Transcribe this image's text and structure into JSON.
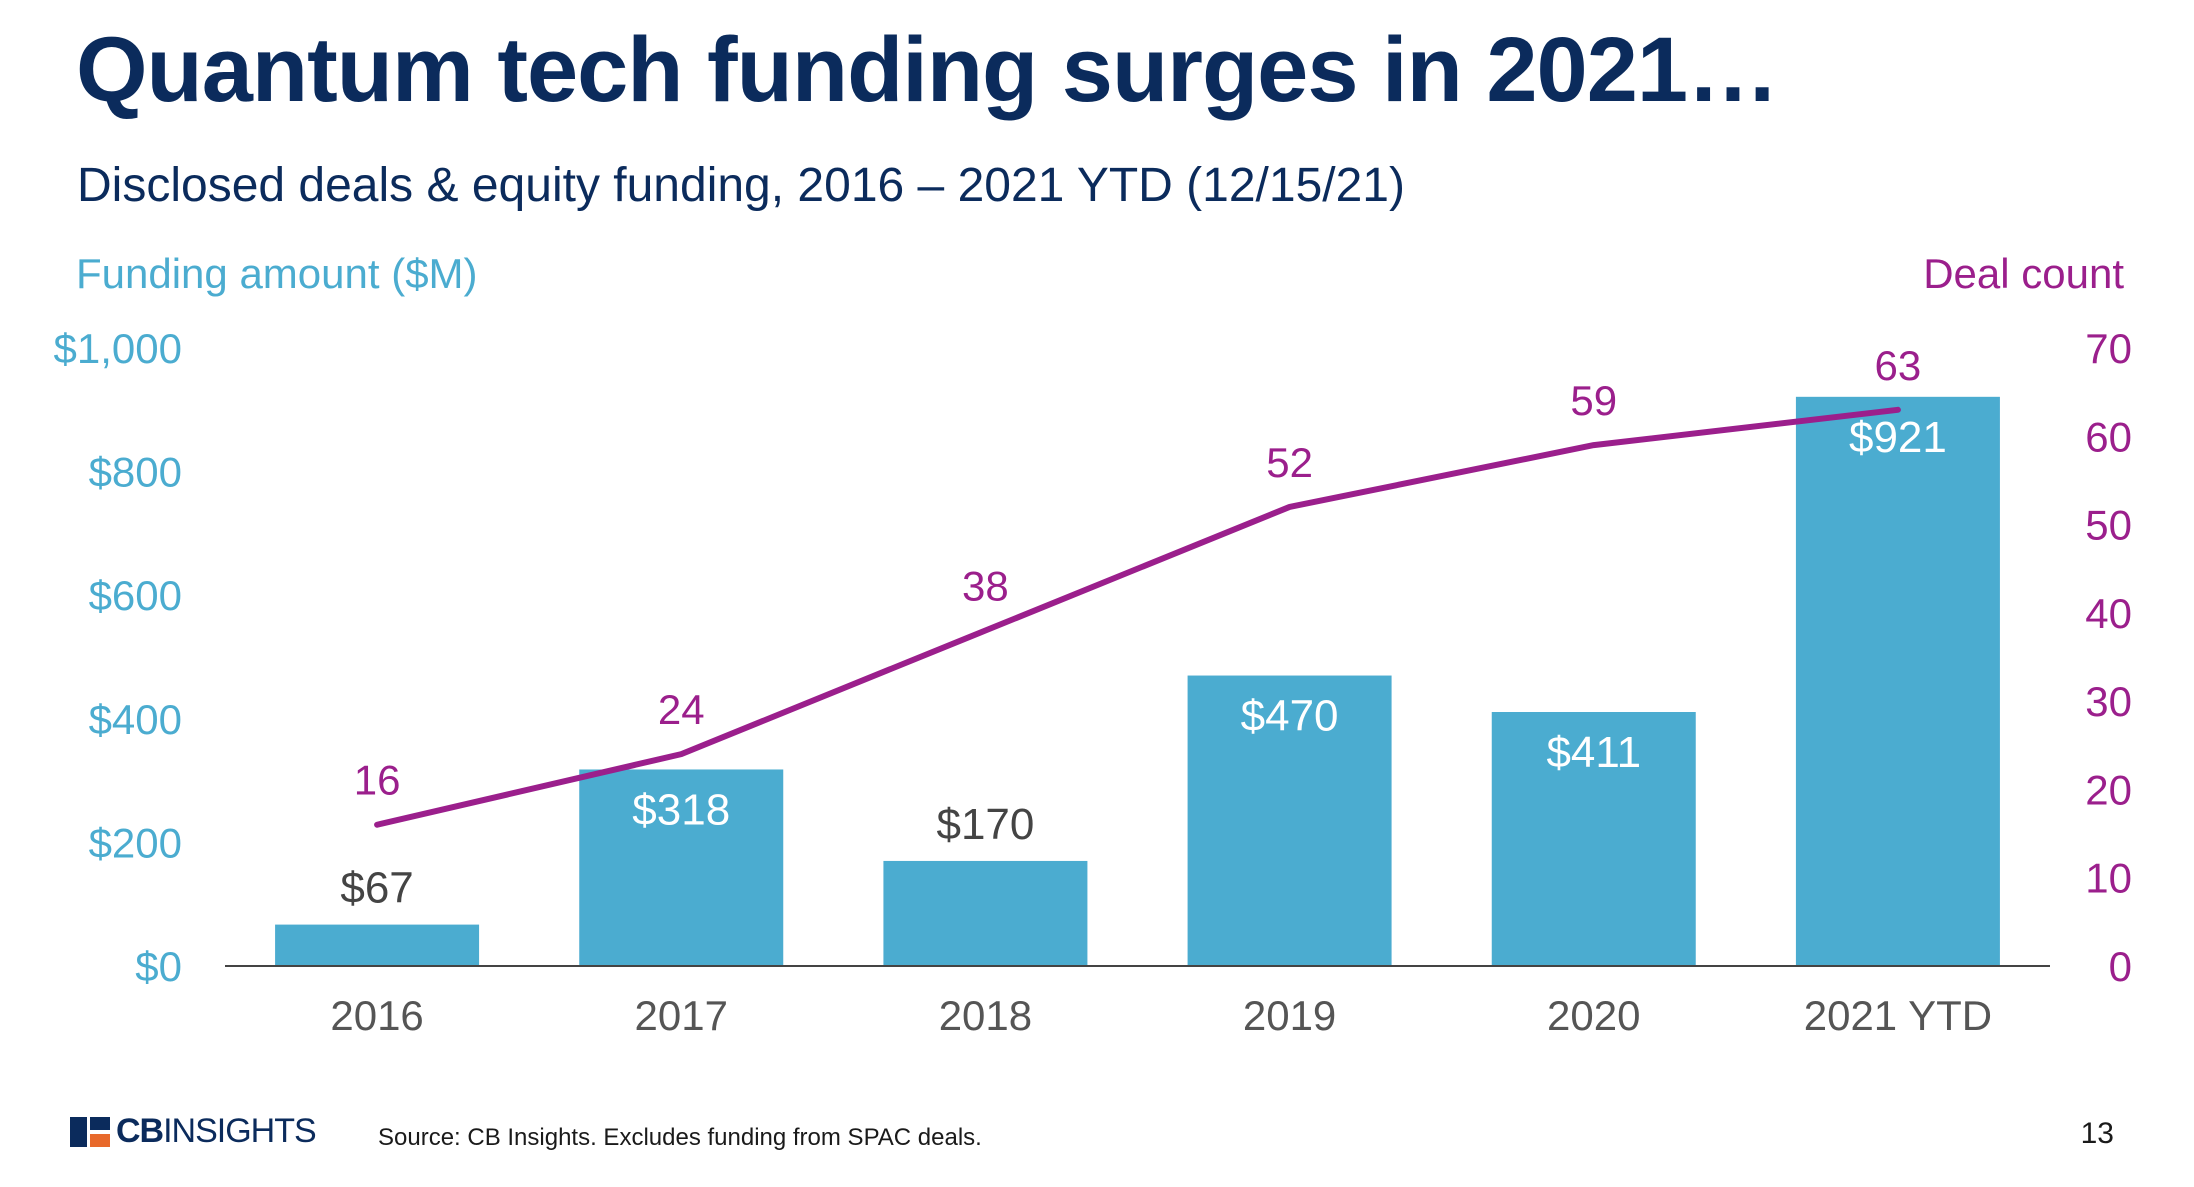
{
  "slide": {
    "title": "Quantum tech funding surges in 2021…",
    "subtitle": "Disclosed deals & equity funding, 2016 – 2021 YTD (12/15/21)",
    "source": "Source: CB Insights. Excludes funding from SPAC deals.",
    "page_number": "13",
    "logo": {
      "bold": "CB",
      "light": "INSIGHTS"
    }
  },
  "chart_data": {
    "type": "bar",
    "title": "",
    "categories": [
      "2016",
      "2017",
      "2018",
      "2019",
      "2020",
      "2021 YTD"
    ],
    "series": [
      {
        "name": "Funding amount ($M)",
        "type": "bar",
        "axis": "left",
        "values": [
          67,
          318,
          170,
          470,
          411,
          921
        ],
        "labels": [
          "$67",
          "$318",
          "$170",
          "$470",
          "$411",
          "$921"
        ]
      },
      {
        "name": "Deal count",
        "type": "line",
        "axis": "right",
        "values": [
          16,
          24,
          38,
          52,
          59,
          63
        ],
        "labels": [
          "16",
          "24",
          "38",
          "52",
          "59",
          "63"
        ]
      }
    ],
    "ylabel_left": "Funding amount ($M)",
    "ylabel_right": "Deal count",
    "ylim_left": [
      0,
      1000
    ],
    "ylim_right": [
      0,
      70
    ],
    "yticks_left": [
      "$0",
      "$200",
      "$400",
      "$600",
      "$800",
      "$1,000"
    ],
    "yticks_right": [
      "0",
      "10",
      "20",
      "30",
      "40",
      "50",
      "60",
      "70"
    ],
    "grid": false,
    "colors": {
      "bar": "#4bacd0",
      "line": "#9b1f8c",
      "left_axis_text": "#4bacd0",
      "right_axis_text": "#9b1f8c",
      "category_text": "#555555"
    }
  }
}
